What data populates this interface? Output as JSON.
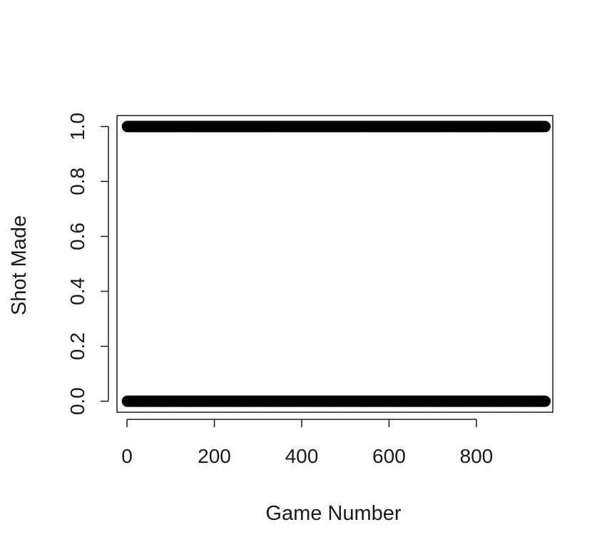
{
  "chart_data": {
    "type": "scatter",
    "title": "",
    "xlabel": "Game Number",
    "ylabel": "Shot Made",
    "xlim": [
      -23,
      975
    ],
    "ylim": [
      -0.04,
      1.04
    ],
    "x_ticks": [
      0,
      200,
      400,
      600,
      800
    ],
    "x_tick_labels": [
      "0",
      "200",
      "400",
      "600",
      "800"
    ],
    "y_ticks": [
      0.0,
      0.2,
      0.4,
      0.6,
      0.8,
      1.0
    ],
    "y_tick_labels": [
      "0.0",
      "0.2",
      "0.4",
      "0.6",
      "0.8",
      "1.0"
    ],
    "grid": false,
    "legend": "none",
    "point_color": "#000000",
    "series": [
      {
        "description": "Shots missed (0) and made (1) by game; points are densely packed across games",
        "x_range": [
          1,
          960
        ],
        "y_levels": [
          0,
          1
        ],
        "x_step": 4,
        "y": {
          "0": {
            "x_start": 1,
            "x_end": 960
          },
          "1": {
            "x_start": 1,
            "x_end": 960
          }
        }
      }
    ]
  }
}
